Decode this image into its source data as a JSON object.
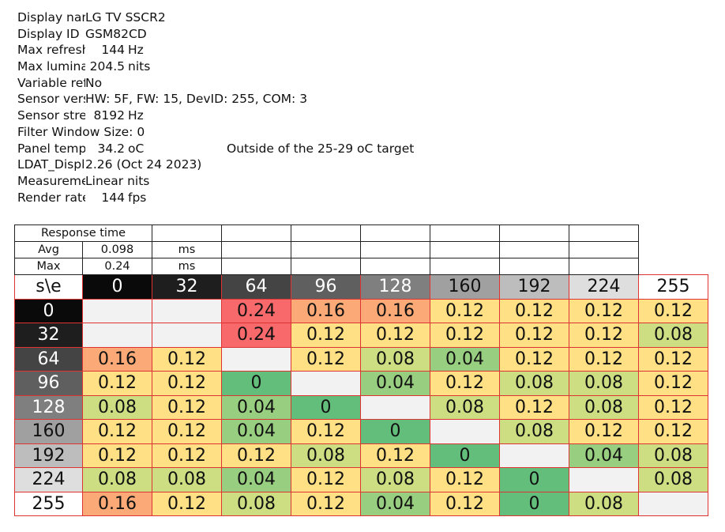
{
  "info": {
    "display_name": {
      "label": "Display name",
      "value": "LG TV SSCR2"
    },
    "display_id": {
      "label": "Display ID",
      "value": "GSM82CD"
    },
    "max_refresh": {
      "label": "Max refresh",
      "value": "144",
      "unit": "Hz"
    },
    "max_luminance": {
      "label": "Max luminance",
      "value": "204.5",
      "unit": "nits"
    },
    "variable_refresh": {
      "label": "Variable refresh",
      "value": "No"
    },
    "sensor_version": {
      "label": "Sensor version",
      "value": "HW: 5F, FW: 15, DevID: 255, COM: 3"
    },
    "sensor_stream": {
      "label": "Sensor stream",
      "value": "8192",
      "unit": "Hz"
    },
    "filter_window": {
      "label": "Filter Window Size: 0"
    },
    "panel_temp": {
      "label": "Panel temperature",
      "value": "34.2",
      "unit": "oC",
      "note": "Outside of the 25-29 oC target"
    },
    "ldat": {
      "label": "LDAT_Display",
      "value": "2.26 (Oct 24 2023)"
    },
    "measurement": {
      "label": "Measurement",
      "value": "Linear nits"
    },
    "render_rate": {
      "label": "Render rate",
      "value": "144",
      "unit": "fps"
    }
  },
  "summary": {
    "title": "Response time",
    "avg_label": "Avg",
    "avg_value": "0.098",
    "avg_unit": "ms",
    "max_label": "Max",
    "max_value": "0.24",
    "max_unit": "ms"
  },
  "matrix": {
    "corner": "s\\e",
    "levels": [
      "0",
      "32",
      "64",
      "96",
      "128",
      "160",
      "192",
      "224",
      "255"
    ],
    "header_colors": [
      "#0a0a0a",
      "#1e1e1e",
      "#444444",
      "#5f5f5f",
      "#7f7f7f",
      "#a0a0a0",
      "#bdbdbd",
      "#dedede",
      "#ffffff"
    ],
    "header_text_colors": [
      "#ffffff",
      "#ffffff",
      "#ffffff",
      "#ffffff",
      "#ffffff",
      "#111111",
      "#111111",
      "#111111",
      "#111111"
    ],
    "rows": [
      [
        "",
        "",
        "0.24",
        "0.16",
        "0.16",
        "0.12",
        "0.12",
        "0.12",
        "0.12"
      ],
      [
        "",
        "",
        "0.24",
        "0.12",
        "0.12",
        "0.12",
        "0.12",
        "0.12",
        "0.08"
      ],
      [
        "0.16",
        "0.12",
        "",
        "0.12",
        "0.08",
        "0.04",
        "0.12",
        "0.12",
        "0.12"
      ],
      [
        "0.12",
        "0.12",
        "0",
        "",
        "0.04",
        "0.12",
        "0.08",
        "0.08",
        "0.12"
      ],
      [
        "0.08",
        "0.12",
        "0.04",
        "0",
        "",
        "0.08",
        "0.12",
        "0.08",
        "0.12"
      ],
      [
        "0.12",
        "0.12",
        "0.04",
        "0.12",
        "0",
        "",
        "0.08",
        "0.12",
        "0.12"
      ],
      [
        "0.12",
        "0.12",
        "0.12",
        "0.08",
        "0.12",
        "0",
        "",
        "0.04",
        "0.08"
      ],
      [
        "0.08",
        "0.08",
        "0.04",
        "0.12",
        "0.08",
        "0.12",
        "0",
        "",
        "0.08"
      ],
      [
        "0.16",
        "0.12",
        "0.08",
        "0.12",
        "0.04",
        "0.12",
        "0",
        "0.08",
        ""
      ]
    ],
    "value_colors": {
      "0.24": "#f8696b",
      "0.16": "#fbaa77",
      "0.12": "#ffe084",
      "0.08": "#cddd82",
      "0.04": "#98ce7f",
      "0": "#63be7b",
      "": "#f2f2f2"
    }
  }
}
